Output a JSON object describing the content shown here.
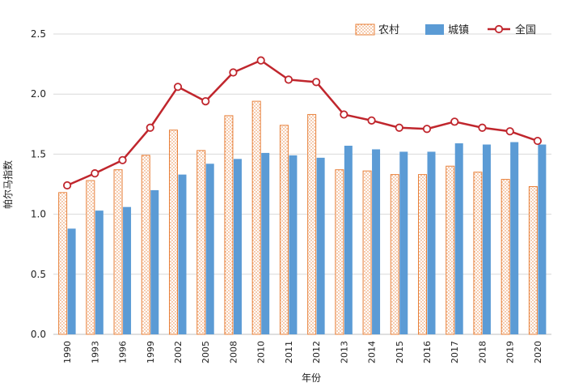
{
  "chart_data": {
    "type": "bar",
    "title": "",
    "xlabel": "年份",
    "ylabel": "帕尔马指数",
    "ylim": [
      0,
      2.5
    ],
    "yticks": [
      "0.0",
      "0.5",
      "1.0",
      "1.5",
      "2.0",
      "2.5"
    ],
    "ytick_values": [
      0,
      0.5,
      1.0,
      1.5,
      2.0,
      2.5
    ],
    "grid": true,
    "legend_position": "top-right",
    "categories": [
      "1990",
      "1993",
      "1996",
      "1999",
      "2002",
      "2005",
      "2008",
      "2010",
      "2011",
      "2012",
      "2013",
      "2014",
      "2015",
      "2016",
      "2017",
      "2018",
      "2019",
      "2020"
    ],
    "series": [
      {
        "name": "农村",
        "type": "bar",
        "color": "#E8803A",
        "values": [
          1.18,
          1.28,
          1.37,
          1.49,
          1.7,
          1.53,
          1.82,
          1.94,
          1.74,
          1.83,
          1.37,
          1.36,
          1.33,
          1.33,
          1.4,
          1.35,
          1.29,
          1.23
        ]
      },
      {
        "name": "城镇",
        "type": "bar",
        "color": "#5B9BD5",
        "values": [
          0.88,
          1.03,
          1.06,
          1.2,
          1.33,
          1.42,
          1.46,
          1.51,
          1.49,
          1.47,
          1.57,
          1.54,
          1.52,
          1.52,
          1.59,
          1.58,
          1.6,
          1.58
        ]
      },
      {
        "name": "全国",
        "type": "line",
        "color": "#C0262D",
        "values": [
          1.24,
          1.34,
          1.45,
          1.72,
          2.06,
          1.94,
          2.18,
          2.28,
          2.12,
          2.1,
          1.83,
          1.78,
          1.72,
          1.71,
          1.77,
          1.72,
          1.69,
          1.61
        ]
      }
    ]
  }
}
